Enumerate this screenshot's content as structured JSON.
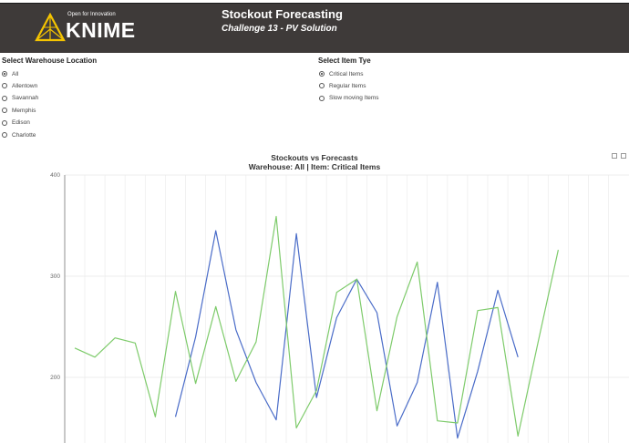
{
  "header": {
    "tagline": "Open for Innovation",
    "logo_text": "KNIME",
    "title": "Stockout Forecasting",
    "subtitle": "Challenge 13 - PV Solution",
    "background": "#3e3a39",
    "logo_color": "#f5c400"
  },
  "warehouse": {
    "label": "Select Warehouse Location",
    "options": [
      "All",
      "Allentown",
      "Savannah",
      "Memphis",
      "Edison",
      "Charlotte"
    ],
    "selected": "All"
  },
  "item_type": {
    "label": "Select Item Tye",
    "options": [
      "Critical Items",
      "Regular Items",
      "Slow moving Items"
    ],
    "selected": "Critical Items"
  },
  "chart_data": {
    "type": "line",
    "title": "Stockouts vs Forecasts",
    "subtitle": "Warehouse: All | Item: Critical Items",
    "ylim": [
      150,
      400
    ],
    "yticks": [
      200,
      300,
      400
    ],
    "x": [
      0,
      1,
      2,
      3,
      4,
      5,
      6,
      7,
      8,
      9,
      10,
      11,
      12,
      13,
      14,
      15,
      16,
      17,
      18,
      19,
      20,
      21,
      22,
      23,
      24,
      25,
      26,
      27,
      28,
      29,
      30
    ],
    "series": [
      {
        "color": "#4a6cc8",
        "values": [
          null,
          null,
          null,
          null,
          null,
          161,
          240,
          345,
          247,
          195,
          158,
          342,
          180,
          259,
          297,
          264,
          152,
          195,
          294,
          140,
          206,
          286,
          220,
          null,
          null,
          null,
          null,
          null,
          null,
          null,
          null
        ]
      },
      {
        "color": "#7ecb6b",
        "values": [
          229,
          220,
          239,
          234,
          161,
          285,
          194,
          270,
          196,
          235,
          359,
          150,
          187,
          284,
          297,
          167,
          260,
          314,
          157,
          155,
          266,
          269,
          142,
          235,
          326,
          null,
          null,
          null,
          null,
          null,
          null
        ]
      }
    ]
  }
}
